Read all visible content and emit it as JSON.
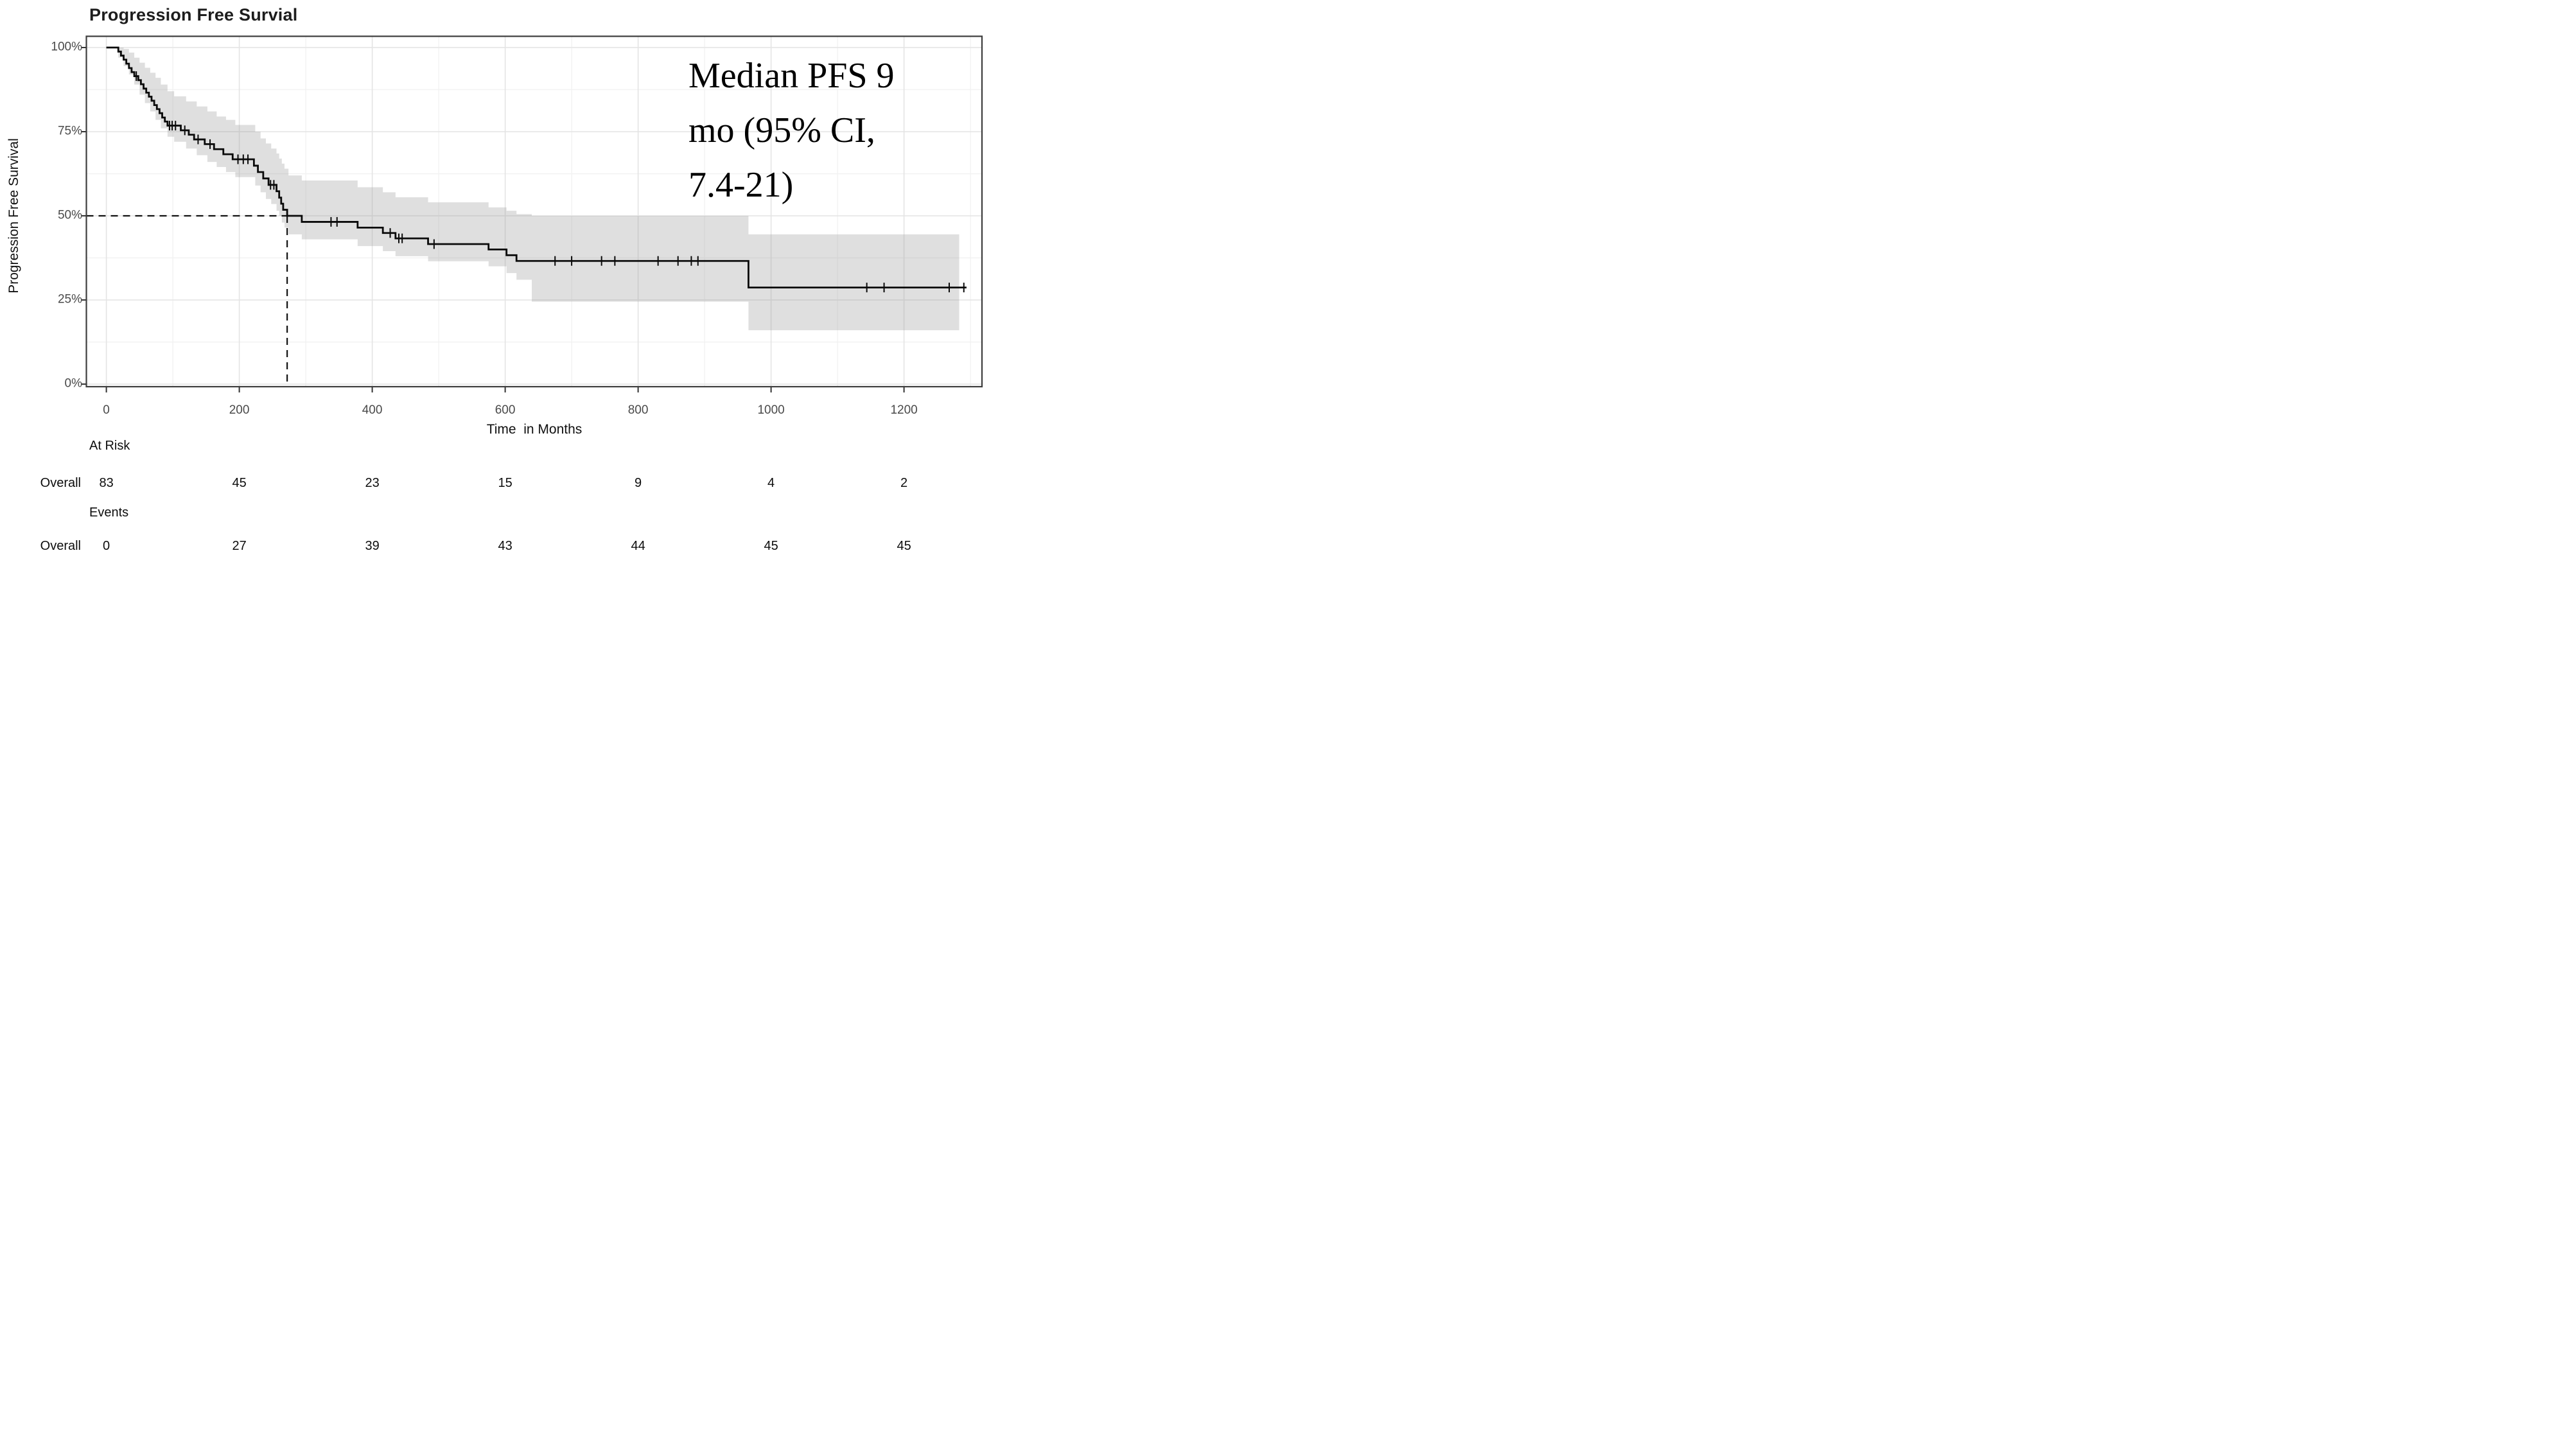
{
  "page_title": "Progression Free Survial",
  "chart_data": {
    "type": "line",
    "subtype": "kaplan-meier-step",
    "title": "Progression Free Survial",
    "ylabel": "Progression Free Survival",
    "xlabel": "Time  in Months",
    "annotation": "Median PFS 9\nmo (95% CI,\n7.4-21)",
    "x_ticks": [
      0,
      200,
      400,
      600,
      800,
      1000,
      1200
    ],
    "x_minor_gridlines": [
      100,
      300,
      500,
      700,
      900,
      1100,
      1300
    ],
    "y_ticks_percent": [
      0,
      25,
      50,
      75,
      100
    ],
    "y_tick_labels": [
      "0%",
      "25%",
      "50%",
      "75%",
      "100%"
    ],
    "y_minor_gridlines_percent": [
      12.5,
      37.5,
      62.5,
      87.5
    ],
    "xlim": [
      -30,
      1317
    ],
    "ylim": [
      0,
      100
    ],
    "grid": "major+minor, light gray on white panel, dark panel border",
    "legend_position": "none",
    "colors": {
      "curve": "#0a0a0a",
      "ci_band": "#9a9a9a",
      "ci_band_opacity": 0.32,
      "grid_major": "#e4e4e4",
      "grid_minor": "#f2f2f2",
      "panel_border": "#3d3d3d",
      "tick_text": "#4a4a4a",
      "dashed_reference": "#111111"
    },
    "median_reference": {
      "time": 272,
      "survival_percent": 50
    },
    "km_steps": [
      [
        0,
        100
      ],
      [
        18,
        98.8
      ],
      [
        22,
        97.6
      ],
      [
        26,
        96.4
      ],
      [
        30,
        95.2
      ],
      [
        34,
        93.9
      ],
      [
        38,
        92.7
      ],
      [
        42,
        91.5
      ],
      [
        48,
        90.3
      ],
      [
        52,
        89.1
      ],
      [
        56,
        87.8
      ],
      [
        60,
        86.6
      ],
      [
        64,
        85.4
      ],
      [
        68,
        84.2
      ],
      [
        72,
        82.9
      ],
      [
        76,
        81.7
      ],
      [
        80,
        80.5
      ],
      [
        84,
        79.2
      ],
      [
        88,
        78.0
      ],
      [
        92,
        76.8
      ],
      [
        112,
        75.4
      ],
      [
        124,
        74.1
      ],
      [
        132,
        72.7
      ],
      [
        148,
        71.3
      ],
      [
        162,
        69.8
      ],
      [
        176,
        68.3
      ],
      [
        190,
        66.8
      ],
      [
        222,
        64.9
      ],
      [
        228,
        63.0
      ],
      [
        236,
        61.1
      ],
      [
        244,
        59.2
      ],
      [
        256,
        57.3
      ],
      [
        260,
        55.4
      ],
      [
        263,
        53.6
      ],
      [
        266,
        51.8
      ],
      [
        272,
        50.0
      ],
      [
        294,
        48.2
      ],
      [
        378,
        46.5
      ],
      [
        416,
        44.9
      ],
      [
        435,
        43.3
      ],
      [
        484,
        41.6
      ],
      [
        575,
        40.0
      ],
      [
        602,
        38.3
      ],
      [
        617,
        36.6
      ],
      [
        966,
        28.7
      ],
      [
        1294,
        28.7
      ]
    ],
    "censor_marks": [
      [
        45,
        91.5
      ],
      [
        95,
        76.8
      ],
      [
        99,
        76.8
      ],
      [
        104,
        76.8
      ],
      [
        118,
        75.4
      ],
      [
        138,
        72.7
      ],
      [
        156,
        71.3
      ],
      [
        198,
        66.8
      ],
      [
        206,
        66.8
      ],
      [
        213,
        66.8
      ],
      [
        247,
        59.2
      ],
      [
        252,
        59.2
      ],
      [
        338,
        48.2
      ],
      [
        347,
        48.2
      ],
      [
        427,
        44.9
      ],
      [
        440,
        43.3
      ],
      [
        445,
        43.3
      ],
      [
        493,
        41.6
      ],
      [
        675,
        36.6
      ],
      [
        700,
        36.6
      ],
      [
        745,
        36.6
      ],
      [
        765,
        36.6
      ],
      [
        830,
        36.6
      ],
      [
        860,
        36.6
      ],
      [
        880,
        36.6
      ],
      [
        890,
        36.6
      ],
      [
        1144,
        28.7
      ],
      [
        1170,
        28.7
      ],
      [
        1268,
        28.7
      ],
      [
        1290,
        28.7
      ]
    ],
    "ci_band": [
      [
        18,
        97,
        100
      ],
      [
        26,
        94.5,
        99.6
      ],
      [
        34,
        92,
        98.5
      ],
      [
        42,
        89,
        97
      ],
      [
        50,
        86,
        95.5
      ],
      [
        58,
        83.5,
        94
      ],
      [
        66,
        81,
        92.5
      ],
      [
        74,
        78.5,
        91
      ],
      [
        82,
        76,
        89
      ],
      [
        92,
        73.5,
        87
      ],
      [
        102,
        72,
        85.5
      ],
      [
        120,
        70,
        84
      ],
      [
        136,
        68,
        82.5
      ],
      [
        152,
        66,
        81
      ],
      [
        166,
        64.5,
        79.5
      ],
      [
        180,
        63,
        78.5
      ],
      [
        194,
        61.5,
        77
      ],
      [
        224,
        59,
        75
      ],
      [
        232,
        57,
        73
      ],
      [
        240,
        55,
        71.5
      ],
      [
        248,
        53.5,
        70
      ],
      [
        256,
        51.5,
        68.5
      ],
      [
        260,
        50,
        67
      ],
      [
        264,
        48,
        65.5
      ],
      [
        268,
        46.5,
        64
      ],
      [
        274,
        44.5,
        62
      ],
      [
        294,
        43,
        60.5
      ],
      [
        378,
        41,
        58.5
      ],
      [
        416,
        39.5,
        57
      ],
      [
        435,
        38,
        55.5
      ],
      [
        484,
        36.5,
        54
      ],
      [
        575,
        35,
        52.5
      ],
      [
        602,
        33,
        51.5
      ],
      [
        617,
        31,
        50.5
      ],
      [
        640,
        24.5,
        50
      ],
      [
        966,
        16,
        44.5
      ],
      [
        1283,
        16,
        44.5
      ]
    ]
  },
  "risk_table": {
    "at_risk_header": "At Risk",
    "events_header": "Events",
    "row_label_at_risk": "Overall",
    "row_label_events": "Overall",
    "times": [
      0,
      200,
      400,
      600,
      800,
      1000,
      1200
    ],
    "at_risk": [
      83,
      45,
      23,
      15,
      9,
      4,
      2
    ],
    "events": [
      0,
      27,
      39,
      43,
      44,
      45,
      45
    ]
  }
}
